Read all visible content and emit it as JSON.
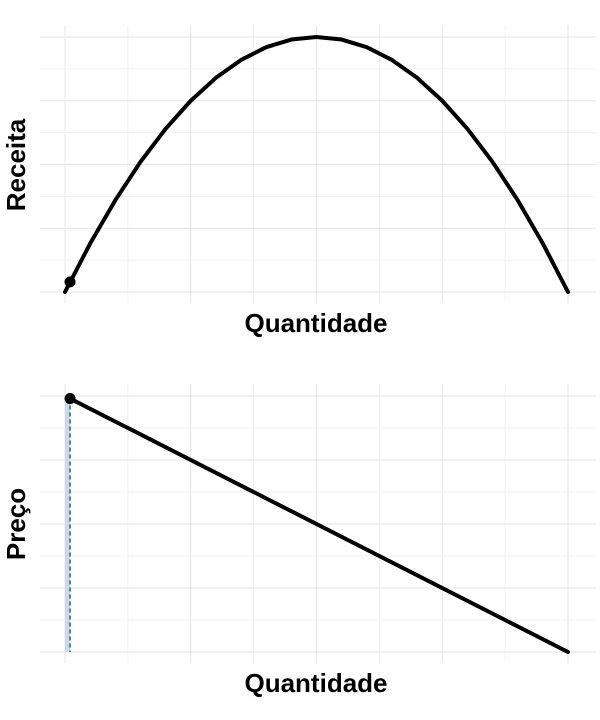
{
  "chart_data": [
    {
      "type": "line",
      "xlabel": "Quantidade",
      "ylabel": "Receita",
      "xlim": [
        0,
        1
      ],
      "ylim": [
        0,
        0.25
      ],
      "grid": true,
      "series": [
        {
          "x": [
            0,
            0.05,
            0.1,
            0.15,
            0.2,
            0.25,
            0.3,
            0.35,
            0.4,
            0.45,
            0.5,
            0.55,
            0.6,
            0.65,
            0.7,
            0.75,
            0.8,
            0.85,
            0.9,
            0.95,
            1
          ],
          "y": [
            0,
            0.0475,
            0.09,
            0.1275,
            0.16,
            0.1875,
            0.21,
            0.2275,
            0.24,
            0.2475,
            0.25,
            0.2475,
            0.24,
            0.2275,
            0.21,
            0.1875,
            0.16,
            0.1275,
            0.09,
            0.0475,
            0
          ]
        }
      ],
      "highlight_point": {
        "x": 0.01,
        "y": 0.0099
      }
    },
    {
      "type": "line",
      "xlabel": "Quantidade",
      "ylabel": "Preço",
      "xlim": [
        0,
        1
      ],
      "ylim": [
        0,
        1
      ],
      "grid": true,
      "series": [
        {
          "x": [
            0.01,
            1
          ],
          "y": [
            0.99,
            0
          ]
        }
      ],
      "highlight_point": {
        "x": 0.01,
        "y": 0.99
      },
      "shaded_area": {
        "x_from": 0,
        "x_to": 0.01
      },
      "dashed_vline_x": 0.01,
      "colors": {
        "area": "#c6dbef",
        "dashed_line": "#08306b"
      }
    }
  ]
}
